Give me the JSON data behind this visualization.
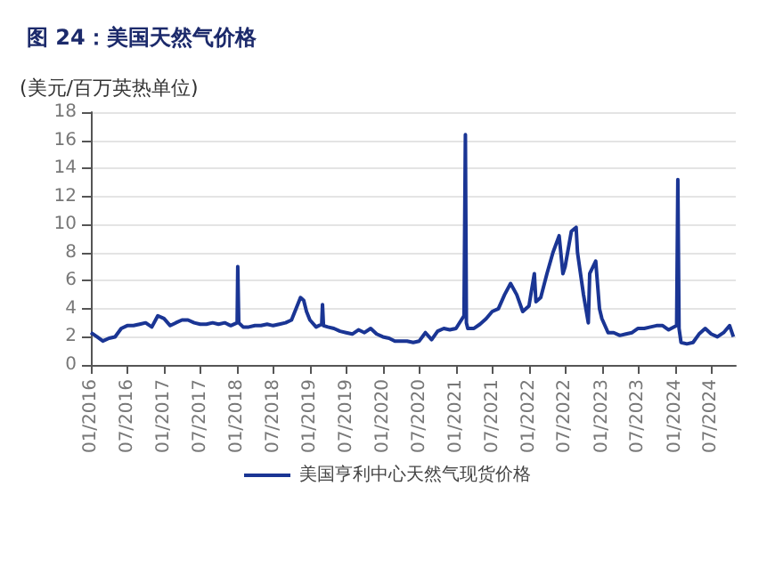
{
  "chart_data": {
    "type": "line",
    "title": "图 24：美国天然气价格",
    "ylabel": "(美元/百万英热单位)",
    "x": [
      "2016-01-01",
      "2016-02-01",
      "2016-03-01",
      "2016-04-01",
      "2016-05-01",
      "2016-06-01",
      "2016-07-01",
      "2016-08-01",
      "2016-09-01",
      "2016-10-01",
      "2016-11-01",
      "2016-12-01",
      "2017-01-01",
      "2017-02-01",
      "2017-03-01",
      "2017-04-01",
      "2017-05-01",
      "2017-06-01",
      "2017-07-01",
      "2017-08-01",
      "2017-09-01",
      "2017-10-01",
      "2017-11-01",
      "2017-12-01",
      "2018-01-02",
      "2018-01-05",
      "2018-01-10",
      "2018-02-01",
      "2018-03-01",
      "2018-04-01",
      "2018-05-01",
      "2018-06-01",
      "2018-07-01",
      "2018-08-01",
      "2018-09-01",
      "2018-10-01",
      "2018-11-15",
      "2018-12-01",
      "2018-12-15",
      "2019-01-01",
      "2019-02-01",
      "2019-03-01",
      "2019-03-05",
      "2019-03-10",
      "2019-04-01",
      "2019-05-01",
      "2019-06-01",
      "2019-07-01",
      "2019-08-01",
      "2019-09-01",
      "2019-10-01",
      "2019-11-01",
      "2019-12-01",
      "2020-01-01",
      "2020-02-01",
      "2020-03-01",
      "2020-04-01",
      "2020-05-01",
      "2020-06-01",
      "2020-07-01",
      "2020-08-01",
      "2020-09-01",
      "2020-10-01",
      "2020-11-01",
      "2020-12-01",
      "2021-01-01",
      "2021-02-10",
      "2021-02-17",
      "2021-02-22",
      "2021-03-01",
      "2021-04-01",
      "2021-05-01",
      "2021-06-01",
      "2021-07-01",
      "2021-08-01",
      "2021-09-01",
      "2021-10-01",
      "2021-11-01",
      "2021-12-01",
      "2022-01-01",
      "2022-01-28",
      "2022-02-05",
      "2022-03-01",
      "2022-04-01",
      "2022-05-01",
      "2022-06-01",
      "2022-06-20",
      "2022-07-01",
      "2022-08-01",
      "2022-08-25",
      "2022-09-01",
      "2022-10-01",
      "2022-10-25",
      "2022-11-01",
      "2022-12-01",
      "2022-12-20",
      "2023-01-01",
      "2023-02-01",
      "2023-03-01",
      "2023-04-01",
      "2023-05-01",
      "2023-06-01",
      "2023-07-01",
      "2023-08-01",
      "2023-09-01",
      "2023-10-01",
      "2023-11-01",
      "2023-12-01",
      "2024-01-10",
      "2024-01-16",
      "2024-01-22",
      "2024-02-01",
      "2024-03-01",
      "2024-04-01",
      "2024-05-01",
      "2024-06-01",
      "2024-07-01",
      "2024-08-01",
      "2024-09-01",
      "2024-10-01",
      "2024-10-20"
    ],
    "series": [
      {
        "name": "美国亨利中心天然气现货价格",
        "color": "#1a3594",
        "values": [
          2.3,
          2.0,
          1.7,
          1.9,
          2.0,
          2.6,
          2.8,
          2.8,
          2.9,
          3.0,
          2.7,
          3.5,
          3.3,
          2.8,
          3.0,
          3.2,
          3.2,
          3.0,
          2.9,
          2.9,
          3.0,
          2.9,
          3.0,
          2.8,
          3.0,
          7.0,
          3.0,
          2.7,
          2.7,
          2.8,
          2.8,
          2.9,
          2.8,
          2.9,
          3.0,
          3.2,
          4.8,
          4.6,
          3.8,
          3.2,
          2.7,
          2.9,
          4.3,
          2.8,
          2.7,
          2.6,
          2.4,
          2.3,
          2.2,
          2.5,
          2.3,
          2.6,
          2.2,
          2.0,
          1.9,
          1.7,
          1.7,
          1.7,
          1.6,
          1.7,
          2.3,
          1.8,
          2.4,
          2.6,
          2.5,
          2.6,
          3.5,
          16.4,
          3.0,
          2.6,
          2.6,
          2.9,
          3.3,
          3.8,
          4.0,
          5.0,
          5.8,
          5.0,
          3.8,
          4.2,
          6.5,
          4.5,
          4.8,
          6.5,
          8.0,
          9.2,
          6.5,
          7.0,
          9.5,
          9.8,
          8.0,
          5.0,
          3.0,
          6.5,
          7.4,
          4.0,
          3.3,
          2.3,
          2.3,
          2.1,
          2.2,
          2.3,
          2.6,
          2.6,
          2.7,
          2.8,
          2.8,
          2.5,
          2.8,
          13.2,
          2.6,
          1.6,
          1.5,
          1.6,
          2.2,
          2.6,
          2.2,
          2.0,
          2.3,
          2.8,
          2.0
        ]
      }
    ],
    "xlim": [
      "2016-01-01",
      "2024-11-01"
    ],
    "xticks": [
      {
        "value": "2016-01-01",
        "label": "01/2016"
      },
      {
        "value": "2016-07-01",
        "label": "07/2016"
      },
      {
        "value": "2017-01-01",
        "label": "01/2017"
      },
      {
        "value": "2017-07-01",
        "label": "07/2017"
      },
      {
        "value": "2018-01-01",
        "label": "01/2018"
      },
      {
        "value": "2018-07-01",
        "label": "07/2018"
      },
      {
        "value": "2019-01-01",
        "label": "01/2019"
      },
      {
        "value": "2019-07-01",
        "label": "07/2019"
      },
      {
        "value": "2020-01-01",
        "label": "01/2020"
      },
      {
        "value": "2020-07-01",
        "label": "07/2020"
      },
      {
        "value": "2021-01-01",
        "label": "01/2021"
      },
      {
        "value": "2021-07-01",
        "label": "07/2021"
      },
      {
        "value": "2022-01-01",
        "label": "01/2022"
      },
      {
        "value": "2022-07-01",
        "label": "07/2022"
      },
      {
        "value": "2023-01-01",
        "label": "01/2023"
      },
      {
        "value": "2023-07-01",
        "label": "07/2023"
      },
      {
        "value": "2024-01-01",
        "label": "01/2024"
      },
      {
        "value": "2024-07-01",
        "label": "07/2024"
      }
    ],
    "ylim": [
      0,
      18
    ],
    "yticks": [
      0,
      2,
      4,
      6,
      8,
      10,
      12,
      14,
      16,
      18
    ],
    "grid": "y",
    "legend": "bottom",
    "marker": "none",
    "line_style": "solid"
  }
}
